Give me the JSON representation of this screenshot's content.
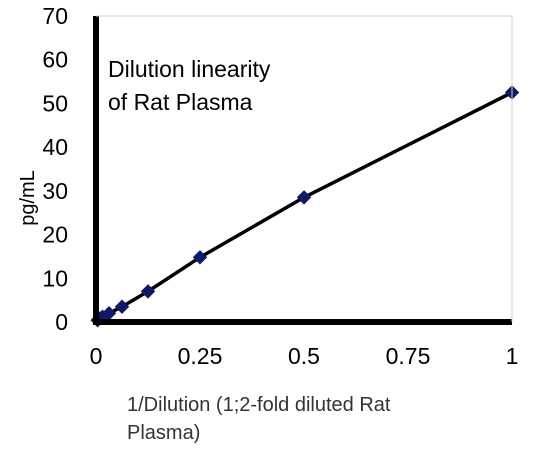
{
  "chart_data": {
    "type": "line",
    "title_lines": [
      "Dilution linearity",
      "of Rat Plasma"
    ],
    "xlabel_lines": [
      "1/Dilution (1;2-fold diluted Rat",
      "Plasma)"
    ],
    "ylabel": "pg/mL",
    "xlim": [
      0,
      1
    ],
    "ylim": [
      0,
      70
    ],
    "x_ticks": [
      0,
      0.25,
      0.5,
      0.75,
      1
    ],
    "x_tick_labels": [
      "0",
      "0.25",
      "0.5",
      "0.75",
      "1"
    ],
    "y_ticks": [
      0,
      10,
      20,
      30,
      40,
      50,
      60,
      70
    ],
    "y_tick_labels": [
      "0",
      "10",
      "20",
      "30",
      "40",
      "50",
      "60",
      "70"
    ],
    "grid": false,
    "series": [
      {
        "x": [
          0.0039,
          0.0078,
          0.0156,
          0.03125,
          0.0625,
          0.125,
          0.25,
          0.5,
          1
        ],
        "y": [
          0.4,
          0.8,
          1.2,
          2.0,
          3.5,
          7.0,
          14.8,
          28.5,
          52.5
        ],
        "color": "#0d1a6b",
        "line_color": "#000000",
        "marker": "diamond"
      }
    ]
  }
}
